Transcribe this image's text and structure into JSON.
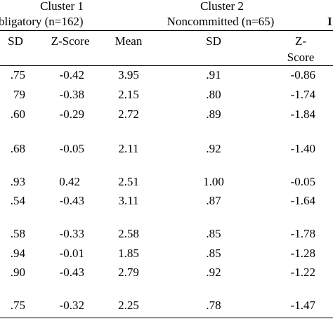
{
  "header": {
    "cluster1_title": "Cluster 1",
    "cluster1_subtitle": "bligatory (n=162)",
    "cluster2_title": "Cluster 2",
    "cluster2_subtitle": "Noncommitted (n=65)",
    "edge_char": "I"
  },
  "columns": {
    "c1_sd": "SD",
    "c1_z": "Z-Score",
    "c2_mean": "Mean",
    "c2_sd": "SD",
    "c2_z_line1": "Z-",
    "c2_z_line2": "Score"
  },
  "rows": [
    {
      "c1_sd": ".75",
      "c1_z": "-0.42",
      "c2_mean": "3.95",
      "c2_sd": ".91",
      "c2_z": "-0.86"
    },
    {
      "c1_sd": "79",
      "c1_z": "-0.38",
      "c2_mean": "2.15",
      "c2_sd": ".80",
      "c2_z": "-1.74"
    },
    {
      "c1_sd": ".60",
      "c1_z": "-0.29",
      "c2_mean": "2.72",
      "c2_sd": ".89",
      "c2_z": "-1.84"
    },
    {
      "c1_sd": ".68",
      "c1_z": "-0.05",
      "c2_mean": "2.11",
      "c2_sd": ".92",
      "c2_z": "-1.40"
    },
    {
      "c1_sd": ".93",
      "c1_z": "0.42",
      "c2_mean": "2.51",
      "c2_sd": "1.00",
      "c2_z": "-0.05"
    },
    {
      "c1_sd": ".54",
      "c1_z": "-0.43",
      "c2_mean": "3.11",
      "c2_sd": ".87",
      "c2_z": "-1.64"
    },
    {
      "c1_sd": ".58",
      "c1_z": "-0.33",
      "c2_mean": "2.58",
      "c2_sd": ".85",
      "c2_z": "-1.78"
    },
    {
      "c1_sd": ".94",
      "c1_z": "-0.01",
      "c2_mean": "1.85",
      "c2_sd": ".85",
      "c2_z": "-1.28"
    },
    {
      "c1_sd": ".90",
      "c1_z": "-0.43",
      "c2_mean": "2.79",
      "c2_sd": ".92",
      "c2_z": "-1.22"
    },
    {
      "c1_sd": ".75",
      "c1_z": "-0.32",
      "c2_mean": "2.25",
      "c2_sd": ".78",
      "c2_z": "-1.47"
    }
  ]
}
